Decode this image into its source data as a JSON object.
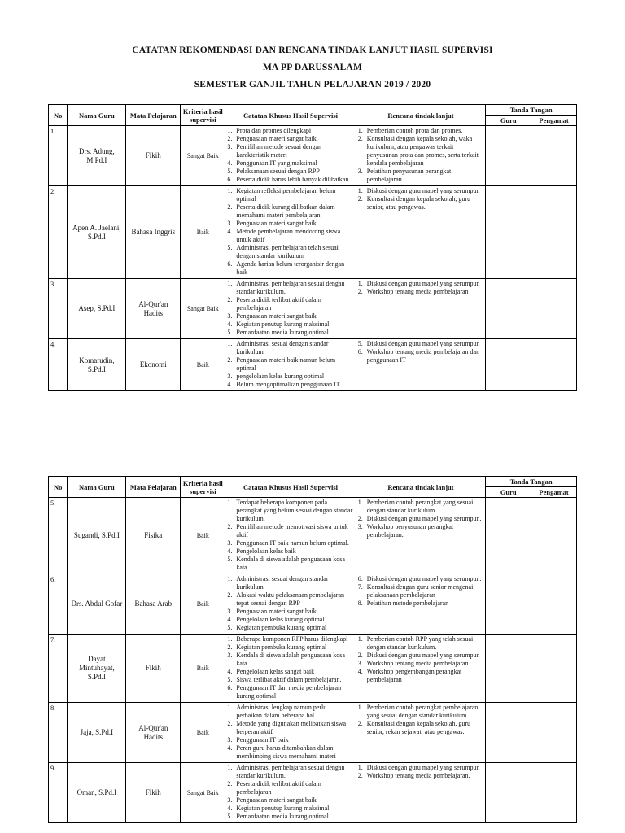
{
  "title": {
    "line1": "CATATAN REKOMENDASI DAN RENCANA TINDAK LANJUT HASIL SUPERVISI",
    "line2": "MA PP DARUSSALAM",
    "line3": "SEMESTER GANJIL TAHUN PELAJARAN 2019 / 2020"
  },
  "headers": {
    "no": "No",
    "nama_guru": "Nama Guru",
    "mata_pelajaran": "Mata Pelajaran",
    "kriteria": "Kriteria hasil supervisi",
    "catatan": "Catatan Khusus Hasil Supervisi",
    "rencana": "Rencana tindak lanjut",
    "tanda_tangan": "Tanda Tangan",
    "guru": "Guru",
    "pengamat": "Pengamat"
  },
  "tables": [
    {
      "rows": [
        {
          "no": "1.",
          "nama": "Drs. Adung, M.Pd.I",
          "mapel": "Fikih",
          "kriteria": "Sangat Baik",
          "catatan": [
            {
              "n": "1.",
              "text": "Prota dan promes dilengkapi"
            },
            {
              "n": "2.",
              "text": "Penguasaan materi sangat baik."
            },
            {
              "n": "3.",
              "text": "Pemilihan metode sesuai dengan karakteristik materi"
            },
            {
              "n": "4.",
              "text": "Penggunaan IT yang maksimal"
            },
            {
              "n": "5.",
              "text": "Pelaksanaan sesuai dengan RPP"
            },
            {
              "n": "6.",
              "text": "Peserta didik harus lebih banyak dilibatkan."
            }
          ],
          "rencana": [
            {
              "n": "1.",
              "text": "Pemberian contoh prota dan promes."
            },
            {
              "n": "2.",
              "text": "Konsultasi dengan kepala sekolah, waka kurikulum, atau pengawas terkait penyusunan prota dan promes, serta terkait kendala pembelajaran"
            },
            {
              "n": "3.",
              "text": "Pelatihan penyusunan perangkat pembelajaran"
            }
          ]
        },
        {
          "no": "2.",
          "nama": "Apen A. Jaelani, S.Pd.I",
          "mapel": "Bahasa Inggris",
          "kriteria": "Baik",
          "catatan": [
            {
              "n": "1.",
              "text": "Kegiatan refleksi pembelajaran belum optimal"
            },
            {
              "n": "2.",
              "text": "Peserta didik kurang dilibatkan dalam memahami materi pembelajaran"
            },
            {
              "n": "3.",
              "text": "Penguasaan materi sangat baik"
            },
            {
              "n": "4.",
              "text": "Metode pembelajaran mendorong siswa untuk aktif"
            },
            {
              "n": "5.",
              "text": "Administrasi pembelajaran telah sesuai dengan standar kurikulum"
            },
            {
              "n": "6.",
              "text": "Agenda harian belum terorganisir dengan baik"
            }
          ],
          "rencana": [
            {
              "n": "1.",
              "text": "Diskusi dengan guru mapel yang serumpun"
            },
            {
              "n": "2.",
              "text": "Konsultasi dengan kepala sekolah, guru senior, atau pengawas."
            }
          ]
        },
        {
          "no": "3.",
          "nama": "Asep, S.Pd.I",
          "mapel": "Al-Qur'an Hadits",
          "kriteria": "Sangat Baik",
          "catatan": [
            {
              "n": "1.",
              "text": "Administrasi pembelajaran sesuai dengan standar kurikulum."
            },
            {
              "n": "2.",
              "text": "Peserta didik terlibat aktif dalam pembelajaran"
            },
            {
              "n": "3.",
              "text": "Penguasaan materi sangat baik"
            },
            {
              "n": "4.",
              "text": "Kegiatan penutup kurang maksimal"
            },
            {
              "n": "5.",
              "text": "Pemanfaatan media kurang optimal"
            }
          ],
          "rencana": [
            {
              "n": "1.",
              "text": "Diskusi dengan guru mapel yang serumpun"
            },
            {
              "n": "2.",
              "text": "Workshop tentang media pembelajaran"
            }
          ]
        },
        {
          "no": "4.",
          "nama": "Komarudin, S.Pd.I",
          "mapel": "Ekonomi",
          "kriteria": "Baik",
          "catatan": [
            {
              "n": "1.",
              "text": "Administrasi sesuai dengan standar kurikulum"
            },
            {
              "n": "2.",
              "text": "Penguasaan materi baik namun belum optimal"
            },
            {
              "n": "3.",
              "text": "pengelolaan kelas kurang optimal"
            },
            {
              "n": "4.",
              "text": "Belum mengoptimalkan penggunaan IT"
            }
          ],
          "rencana": [
            {
              "n": "5.",
              "text": "Diskusi dengan guru mapel yang serumpun"
            },
            {
              "n": "6.",
              "text": "Workshop tentang media pembelajaran dan penggunaan IT"
            }
          ]
        }
      ]
    },
    {
      "rows": [
        {
          "no": "5.",
          "nama": "Sugandi, S.Pd.I",
          "mapel": "Fisika",
          "kriteria": "Baik",
          "catatan": [
            {
              "n": "1.",
              "text": "Terdapat beberapa komponen pada perangkat yang belum sesuai dengan standar kurikulum."
            },
            {
              "n": "2.",
              "text": "Pemilihan metode memotivasi siswa untuk aktif"
            },
            {
              "n": "3.",
              "text": "Penggunaan IT baik namun belum optimal."
            },
            {
              "n": "4.",
              "text": "Pengelolaan kelas baik"
            },
            {
              "n": "5.",
              "text": "Kendala di siswa adalah penguasaan kosa kata"
            }
          ],
          "rencana": [
            {
              "n": "1.",
              "text": "Pemberian contoh perangkat yang sesuai dengan standar kurikulum"
            },
            {
              "n": "2.",
              "text": "Diskusi dengan guru mapel yang serumpun."
            },
            {
              "n": "3.",
              "text": "Workshop penyusunan perangkat pembelajaran."
            }
          ]
        },
        {
          "no": "6.",
          "nama": "Drs. Abdul Gofar",
          "mapel": "Bahasa Arab",
          "kriteria": "Baik",
          "catatan": [
            {
              "n": "1.",
              "text": "Administrasi sesuai dengan standar kurikulum"
            },
            {
              "n": "2.",
              "text": "Alokasi waktu pelaksanaan pembelajaran tepat sesuai dengan RPP"
            },
            {
              "n": "3.",
              "text": "Penguasaan materi sangat baik"
            },
            {
              "n": "4.",
              "text": "Pengelolaan kelas kurang optimal"
            },
            {
              "n": "5.",
              "text": "Kegiatan pembuka kurang optimal"
            }
          ],
          "rencana": [
            {
              "n": "6.",
              "text": "Diskusi dengan guru mapel yang serumpun."
            },
            {
              "n": "7.",
              "text": "Konsultasi dengan guru senior mengenai pelaksanaan pembelajaran"
            },
            {
              "n": "8.",
              "text": "Pelatihan metode pembelajaran"
            }
          ]
        },
        {
          "no": "7.",
          "nama": "Dayat Mintuhayat, S.Pd.I",
          "mapel": "Fikih",
          "kriteria": "Baik",
          "catatan": [
            {
              "n": "1.",
              "text": "Beberapa komponen RPP harus dilengkapi"
            },
            {
              "n": "2.",
              "text": "Kegiatan pembuka kurang optimal"
            },
            {
              "n": "3.",
              "text": "Kendala di siswa adalah penguasaan kosa kata"
            },
            {
              "n": "4.",
              "text": "Pengelolaan kelas sangat baik"
            },
            {
              "n": "5.",
              "text": "Siswa terlibat aktif dalam pembelajaran."
            },
            {
              "n": "6.",
              "text": "Penggunaan IT dan media pembelajaran kurang optimal"
            }
          ],
          "rencana": [
            {
              "n": "1.",
              "text": "Pemberian contoh RPP yang telah sesuai dengan standar kurikulum."
            },
            {
              "n": "2.",
              "text": "Diskusi dengan guru mapel yang serumpun"
            },
            {
              "n": "3.",
              "text": "Workshop tentang media pembelajaran."
            },
            {
              "n": "4.",
              "text": "Workshop pengembangan perangkat pembelajaran"
            }
          ]
        },
        {
          "no": "8.",
          "nama": "Jaja, S.Pd.I",
          "mapel": "Al-Qur'an Hadits",
          "kriteria": "Baik",
          "catatan": [
            {
              "n": "1.",
              "text": "Administrasi lengkap namun perlu perbaikan dalam beberapa hal"
            },
            {
              "n": "2.",
              "text": "Metode yang digunakan melibatkan siswa berperan aktif"
            },
            {
              "n": "3.",
              "text": "Penggunaan IT baik"
            },
            {
              "n": "4.",
              "text": "Peran guru harus ditambahkan dalam membimbing siswa memahami materi"
            }
          ],
          "rencana": [
            {
              "n": "1.",
              "text": "Pemberian contoh perangkat pembelajaran yang sesuai dengan standar kurikulum"
            },
            {
              "n": "2.",
              "text": "Konsultasi dengan kepala sekolah, guru senior, rekan sejawat, atau pengawas."
            }
          ]
        },
        {
          "no": "9.",
          "nama": "Oman, S.Pd.I",
          "mapel": "Fikih",
          "kriteria": "Sangat Baik",
          "catatan": [
            {
              "n": "1.",
              "text": "Administrasi pembelajaran sesuai dengan standar kurikulum."
            },
            {
              "n": "2.",
              "text": "Peserta didik terlibat aktif dalam pembelajaran"
            },
            {
              "n": "3.",
              "text": "Penguasaan materi sangat baik"
            },
            {
              "n": "4.",
              "text": "Kegiatan penutup kurang maksimal"
            },
            {
              "n": "5.",
              "text": "Pemanfaatan media kurang optimal"
            }
          ],
          "rencana": [
            {
              "n": "1.",
              "text": "Diskusi dengan guru mapel yang serumpun"
            },
            {
              "n": "2.",
              "text": "Workshop tentang media pembelajaran."
            }
          ]
        }
      ]
    }
  ]
}
